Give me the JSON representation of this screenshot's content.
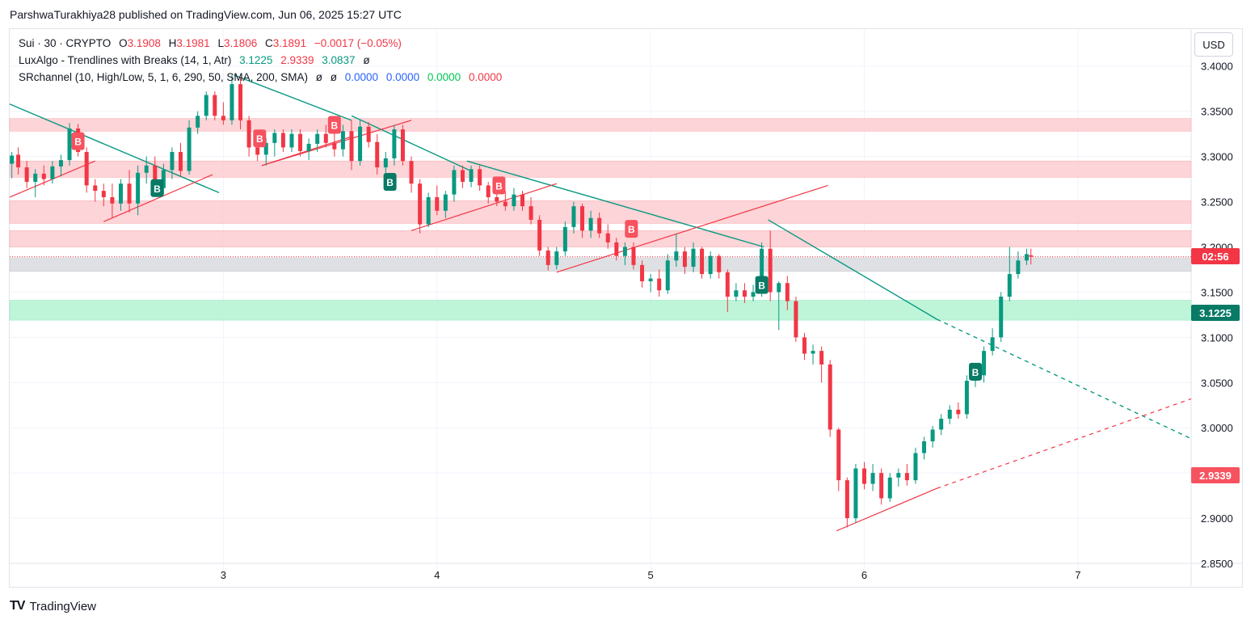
{
  "header": {
    "publisher": "ParshwaTurakhiya28 published on TradingView.com, Jun 06, 2025 15:27 UTC"
  },
  "legend": {
    "symbol": "Sui · 30 · CRYPTO",
    "open_label": "O",
    "open": "3.1908",
    "high_label": "H",
    "high": "3.1981",
    "low_label": "L",
    "low": "3.1806",
    "close_label": "C",
    "close": "3.1891",
    "change": "−0.0017 (−0.05%)",
    "indicator1_name": "LuxAlgo - Trendlines with Breaks (14, 1, Atr)",
    "indicator1_v1": "3.1225",
    "indicator1_v2": "2.9339",
    "indicator1_v3": "3.0837",
    "indicator1_v4": "ø",
    "indicator2_name": "SRchannel (10, High/Low, 5, 1, 6, 290, 50, SMA, 200, SMA)",
    "indicator2_v1": "ø",
    "indicator2_v2": "ø",
    "indicator2_v3": "0.0000",
    "indicator2_v4": "0.0000",
    "indicator2_v5": "0.0000",
    "indicator2_v6": "0.0000"
  },
  "currency_label": "USD",
  "price_tags": {
    "timer": "02:56",
    "upper_trendline": "3.1225",
    "lower_trendline": "2.9339"
  },
  "brand": {
    "logo": "TV",
    "name": "TradingView"
  },
  "colors": {
    "up": "#089981",
    "down": "#f23645",
    "resistance_zone": "#fdd0d3",
    "support_zone": "#b7f5d5",
    "current_zone": "#dcdde1",
    "trend_down": "#089981",
    "trend_up": "#f23645"
  },
  "chart_data": {
    "type": "candlestick",
    "symbol": "Sui · 30 · CRYPTO",
    "y_axis": {
      "ticks": [
        "3.4000",
        "3.3500",
        "3.3000",
        "3.2500",
        "3.2000",
        "3.1500",
        "3.1000",
        "3.0500",
        "3.0000",
        "2.9500",
        "2.9000",
        "2.8500"
      ],
      "range": [
        2.825,
        3.44
      ]
    },
    "x_axis": {
      "ticks": [
        {
          "label": "3",
          "x": 3.0
        },
        {
          "label": "4",
          "x": 4.0
        },
        {
          "label": "5",
          "x": 5.0
        },
        {
          "label": "6",
          "x": 6.0
        },
        {
          "label": "7",
          "x": 7.0
        }
      ],
      "range": [
        2.0,
        7.53
      ]
    },
    "zones": [
      {
        "kind": "resistance",
        "from": 3.328,
        "to": 3.342
      },
      {
        "kind": "resistance",
        "from": 3.277,
        "to": 3.295
      },
      {
        "kind": "resistance",
        "from": 3.226,
        "to": 3.251
      },
      {
        "kind": "resistance",
        "from": 3.2,
        "to": 3.218
      },
      {
        "kind": "current",
        "from": 3.173,
        "to": 3.188
      },
      {
        "kind": "support",
        "from": 3.119,
        "to": 3.141
      }
    ],
    "current_price": 3.1891,
    "trendlines_down": [
      {
        "x1": 2.0,
        "y1": 3.358,
        "x2": 2.98,
        "y2": 3.26
      },
      {
        "x1": 3.05,
        "y1": 3.39,
        "x2": 3.6,
        "y2": 3.34
      },
      {
        "x1": 3.6,
        "y1": 3.345,
        "x2": 4.15,
        "y2": 3.285
      },
      {
        "x1": 4.14,
        "y1": 3.295,
        "x2": 5.53,
        "y2": 3.2
      },
      {
        "x1": 5.55,
        "y1": 3.23,
        "x2": 6.34,
        "y2": 3.12
      },
      {
        "x1": 6.34,
        "y1": 3.12,
        "x2": 7.53,
        "y2": 2.988,
        "dashed": true
      }
    ],
    "trendlines_up": [
      {
        "x1": 2.0,
        "y1": 3.255,
        "x2": 2.4,
        "y2": 3.295
      },
      {
        "x1": 2.44,
        "y1": 3.228,
        "x2": 2.95,
        "y2": 3.28
      },
      {
        "x1": 3.18,
        "y1": 3.29,
        "x2": 3.6,
        "y2": 3.322
      },
      {
        "x1": 3.18,
        "y1": 3.29,
        "x2": 3.88,
        "y2": 3.34
      },
      {
        "x1": 3.88,
        "y1": 3.218,
        "x2": 4.56,
        "y2": 3.27
      },
      {
        "x1": 4.56,
        "y1": 3.172,
        "x2": 5.83,
        "y2": 3.268
      },
      {
        "x1": 5.87,
        "y1": 2.886,
        "x2": 6.34,
        "y2": 2.933
      },
      {
        "x1": 6.34,
        "y1": 2.933,
        "x2": 7.53,
        "y2": 3.032,
        "dashed": true
      }
    ],
    "break_markers": [
      {
        "x": 2.32,
        "y": 3.317,
        "type": "bearish",
        "label": "B"
      },
      {
        "x": 3.17,
        "y": 3.32,
        "type": "bearish",
        "label": "B"
      },
      {
        "x": 3.52,
        "y": 3.335,
        "type": "bearish",
        "label": "B"
      },
      {
        "x": 4.29,
        "y": 3.268,
        "type": "bearish",
        "label": "B"
      },
      {
        "x": 4.91,
        "y": 3.22,
        "type": "bearish",
        "label": "B"
      },
      {
        "x": 2.69,
        "y": 3.265,
        "type": "bullish",
        "label": "B"
      },
      {
        "x": 3.78,
        "y": 3.272,
        "type": "bullish",
        "label": "B"
      },
      {
        "x": 5.52,
        "y": 3.158,
        "type": "bullish",
        "label": "B"
      },
      {
        "x": 6.52,
        "y": 3.062,
        "type": "bullish",
        "label": "B"
      }
    ],
    "candles": [
      {
        "x": 2.01,
        "o": 3.292,
        "h": 3.305,
        "l": 3.276,
        "c": 3.301
      },
      {
        "x": 2.04,
        "o": 3.302,
        "h": 3.31,
        "l": 3.28,
        "c": 3.288
      },
      {
        "x": 2.08,
        "o": 3.288,
        "h": 3.295,
        "l": 3.265,
        "c": 3.272
      },
      {
        "x": 2.12,
        "o": 3.272,
        "h": 3.286,
        "l": 3.255,
        "c": 3.281
      },
      {
        "x": 2.16,
        "o": 3.281,
        "h": 3.29,
        "l": 3.268,
        "c": 3.275
      },
      {
        "x": 2.2,
        "o": 3.275,
        "h": 3.295,
        "l": 3.27,
        "c": 3.289
      },
      {
        "x": 2.24,
        "o": 3.289,
        "h": 3.302,
        "l": 3.278,
        "c": 3.296
      },
      {
        "x": 2.28,
        "o": 3.296,
        "h": 3.337,
        "l": 3.29,
        "c": 3.331
      },
      {
        "x": 2.32,
        "o": 3.331,
        "h": 3.336,
        "l": 3.3,
        "c": 3.305
      },
      {
        "x": 2.36,
        "o": 3.305,
        "h": 3.31,
        "l": 3.26,
        "c": 3.268
      },
      {
        "x": 2.4,
        "o": 3.268,
        "h": 3.275,
        "l": 3.25,
        "c": 3.262
      },
      {
        "x": 2.44,
        "o": 3.262,
        "h": 3.27,
        "l": 3.245,
        "c": 3.255
      },
      {
        "x": 2.48,
        "o": 3.255,
        "h": 3.27,
        "l": 3.232,
        "c": 3.248
      },
      {
        "x": 2.52,
        "o": 3.248,
        "h": 3.275,
        "l": 3.24,
        "c": 3.27
      },
      {
        "x": 2.56,
        "o": 3.27,
        "h": 3.285,
        "l": 3.238,
        "c": 3.248
      },
      {
        "x": 2.6,
        "o": 3.248,
        "h": 3.29,
        "l": 3.235,
        "c": 3.282
      },
      {
        "x": 2.64,
        "o": 3.282,
        "h": 3.3,
        "l": 3.27,
        "c": 3.29
      },
      {
        "x": 2.68,
        "o": 3.29,
        "h": 3.3,
        "l": 3.258,
        "c": 3.265
      },
      {
        "x": 2.72,
        "o": 3.265,
        "h": 3.292,
        "l": 3.258,
        "c": 3.285
      },
      {
        "x": 2.76,
        "o": 3.285,
        "h": 3.31,
        "l": 3.275,
        "c": 3.305
      },
      {
        "x": 2.8,
        "o": 3.305,
        "h": 3.315,
        "l": 3.278,
        "c": 3.284
      },
      {
        "x": 2.84,
        "o": 3.284,
        "h": 3.34,
        "l": 3.28,
        "c": 3.332
      },
      {
        "x": 2.88,
        "o": 3.332,
        "h": 3.35,
        "l": 3.325,
        "c": 3.345
      },
      {
        "x": 2.92,
        "o": 3.345,
        "h": 3.372,
        "l": 3.34,
        "c": 3.368
      },
      {
        "x": 2.96,
        "o": 3.368,
        "h": 3.372,
        "l": 3.34,
        "c": 3.345
      },
      {
        "x": 3.0,
        "o": 3.345,
        "h": 3.36,
        "l": 3.335,
        "c": 3.34
      },
      {
        "x": 3.04,
        "o": 3.34,
        "h": 3.39,
        "l": 3.335,
        "c": 3.38
      },
      {
        "x": 3.08,
        "o": 3.38,
        "h": 3.388,
        "l": 3.33,
        "c": 3.34
      },
      {
        "x": 3.12,
        "o": 3.34,
        "h": 3.345,
        "l": 3.3,
        "c": 3.31
      },
      {
        "x": 3.16,
        "o": 3.31,
        "h": 3.325,
        "l": 3.295,
        "c": 3.302
      },
      {
        "x": 3.2,
        "o": 3.302,
        "h": 3.32,
        "l": 3.29,
        "c": 3.315
      },
      {
        "x": 3.24,
        "o": 3.315,
        "h": 3.33,
        "l": 3.3,
        "c": 3.326
      },
      {
        "x": 3.28,
        "o": 3.326,
        "h": 3.33,
        "l": 3.305,
        "c": 3.31
      },
      {
        "x": 3.32,
        "o": 3.31,
        "h": 3.33,
        "l": 3.305,
        "c": 3.325
      },
      {
        "x": 3.36,
        "o": 3.325,
        "h": 3.33,
        "l": 3.3,
        "c": 3.306
      },
      {
        "x": 3.4,
        "o": 3.306,
        "h": 3.32,
        "l": 3.296,
        "c": 3.314
      },
      {
        "x": 3.44,
        "o": 3.314,
        "h": 3.33,
        "l": 3.305,
        "c": 3.325
      },
      {
        "x": 3.48,
        "o": 3.325,
        "h": 3.335,
        "l": 3.31,
        "c": 3.315
      },
      {
        "x": 3.52,
        "o": 3.315,
        "h": 3.33,
        "l": 3.3,
        "c": 3.308
      },
      {
        "x": 3.56,
        "o": 3.308,
        "h": 3.335,
        "l": 3.3,
        "c": 3.328
      },
      {
        "x": 3.6,
        "o": 3.328,
        "h": 3.34,
        "l": 3.285,
        "c": 3.295
      },
      {
        "x": 3.64,
        "o": 3.295,
        "h": 3.34,
        "l": 3.29,
        "c": 3.333
      },
      {
        "x": 3.68,
        "o": 3.333,
        "h": 3.338,
        "l": 3.31,
        "c": 3.316
      },
      {
        "x": 3.72,
        "o": 3.316,
        "h": 3.325,
        "l": 3.28,
        "c": 3.288
      },
      {
        "x": 3.76,
        "o": 3.288,
        "h": 3.305,
        "l": 3.275,
        "c": 3.298
      },
      {
        "x": 3.8,
        "o": 3.298,
        "h": 3.335,
        "l": 3.29,
        "c": 3.33
      },
      {
        "x": 3.84,
        "o": 3.33,
        "h": 3.335,
        "l": 3.29,
        "c": 3.295
      },
      {
        "x": 3.88,
        "o": 3.295,
        "h": 3.3,
        "l": 3.26,
        "c": 3.27
      },
      {
        "x": 3.92,
        "o": 3.27,
        "h": 3.275,
        "l": 3.215,
        "c": 3.225
      },
      {
        "x": 3.96,
        "o": 3.225,
        "h": 3.26,
        "l": 3.222,
        "c": 3.255
      },
      {
        "x": 4.0,
        "o": 3.255,
        "h": 3.268,
        "l": 3.235,
        "c": 3.24
      },
      {
        "x": 4.04,
        "o": 3.24,
        "h": 3.262,
        "l": 3.232,
        "c": 3.258
      },
      {
        "x": 4.08,
        "o": 3.258,
        "h": 3.29,
        "l": 3.25,
        "c": 3.285
      },
      {
        "x": 4.12,
        "o": 3.285,
        "h": 3.29,
        "l": 3.265,
        "c": 3.272
      },
      {
        "x": 4.16,
        "o": 3.272,
        "h": 3.29,
        "l": 3.266,
        "c": 3.286
      },
      {
        "x": 4.2,
        "o": 3.286,
        "h": 3.29,
        "l": 3.262,
        "c": 3.268
      },
      {
        "x": 4.24,
        "o": 3.268,
        "h": 3.272,
        "l": 3.248,
        "c": 3.255
      },
      {
        "x": 4.28,
        "o": 3.255,
        "h": 3.26,
        "l": 3.245,
        "c": 3.25
      },
      {
        "x": 4.32,
        "o": 3.25,
        "h": 3.262,
        "l": 3.24,
        "c": 3.245
      },
      {
        "x": 4.36,
        "o": 3.245,
        "h": 3.265,
        "l": 3.24,
        "c": 3.258
      },
      {
        "x": 4.4,
        "o": 3.258,
        "h": 3.262,
        "l": 3.24,
        "c": 3.245
      },
      {
        "x": 4.44,
        "o": 3.245,
        "h": 3.255,
        "l": 3.225,
        "c": 3.23
      },
      {
        "x": 4.48,
        "o": 3.23,
        "h": 3.235,
        "l": 3.19,
        "c": 3.196
      },
      {
        "x": 4.52,
        "o": 3.196,
        "h": 3.2,
        "l": 3.174,
        "c": 3.18
      },
      {
        "x": 4.56,
        "o": 3.18,
        "h": 3.2,
        "l": 3.175,
        "c": 3.195
      },
      {
        "x": 4.6,
        "o": 3.195,
        "h": 3.228,
        "l": 3.19,
        "c": 3.222
      },
      {
        "x": 4.64,
        "o": 3.222,
        "h": 3.25,
        "l": 3.215,
        "c": 3.245
      },
      {
        "x": 4.68,
        "o": 3.245,
        "h": 3.248,
        "l": 3.21,
        "c": 3.218
      },
      {
        "x": 4.72,
        "o": 3.218,
        "h": 3.24,
        "l": 3.21,
        "c": 3.232
      },
      {
        "x": 4.76,
        "o": 3.232,
        "h": 3.238,
        "l": 3.21,
        "c": 3.215
      },
      {
        "x": 4.8,
        "o": 3.215,
        "h": 3.225,
        "l": 3.198,
        "c": 3.205
      },
      {
        "x": 4.84,
        "o": 3.205,
        "h": 3.21,
        "l": 3.185,
        "c": 3.19
      },
      {
        "x": 4.88,
        "o": 3.19,
        "h": 3.205,
        "l": 3.18,
        "c": 3.2
      },
      {
        "x": 4.92,
        "o": 3.2,
        "h": 3.205,
        "l": 3.175,
        "c": 3.18
      },
      {
        "x": 4.96,
        "o": 3.18,
        "h": 3.185,
        "l": 3.155,
        "c": 3.162
      },
      {
        "x": 5.0,
        "o": 3.162,
        "h": 3.17,
        "l": 3.15,
        "c": 3.165
      },
      {
        "x": 5.04,
        "o": 3.165,
        "h": 3.175,
        "l": 3.145,
        "c": 3.152
      },
      {
        "x": 5.08,
        "o": 3.152,
        "h": 3.192,
        "l": 3.148,
        "c": 3.185
      },
      {
        "x": 5.12,
        "o": 3.185,
        "h": 3.215,
        "l": 3.178,
        "c": 3.195
      },
      {
        "x": 5.16,
        "o": 3.195,
        "h": 3.2,
        "l": 3.17,
        "c": 3.178
      },
      {
        "x": 5.2,
        "o": 3.178,
        "h": 3.205,
        "l": 3.172,
        "c": 3.198
      },
      {
        "x": 5.24,
        "o": 3.198,
        "h": 3.2,
        "l": 3.165,
        "c": 3.17
      },
      {
        "x": 5.28,
        "o": 3.17,
        "h": 3.195,
        "l": 3.165,
        "c": 3.19
      },
      {
        "x": 5.32,
        "o": 3.19,
        "h": 3.192,
        "l": 3.165,
        "c": 3.172
      },
      {
        "x": 5.36,
        "o": 3.172,
        "h": 3.175,
        "l": 3.128,
        "c": 3.145
      },
      {
        "x": 5.4,
        "o": 3.145,
        "h": 3.16,
        "l": 3.14,
        "c": 3.152
      },
      {
        "x": 5.44,
        "o": 3.152,
        "h": 3.16,
        "l": 3.138,
        "c": 3.145
      },
      {
        "x": 5.48,
        "o": 3.145,
        "h": 3.158,
        "l": 3.14,
        "c": 3.15
      },
      {
        "x": 5.52,
        "o": 3.15,
        "h": 3.205,
        "l": 3.145,
        "c": 3.198
      },
      {
        "x": 5.56,
        "o": 3.198,
        "h": 3.218,
        "l": 3.14,
        "c": 3.15
      },
      {
        "x": 5.6,
        "o": 3.15,
        "h": 3.162,
        "l": 3.108,
        "c": 3.16
      },
      {
        "x": 5.64,
        "o": 3.16,
        "h": 3.168,
        "l": 3.13,
        "c": 3.14
      },
      {
        "x": 5.68,
        "o": 3.14,
        "h": 3.145,
        "l": 3.095,
        "c": 3.1
      },
      {
        "x": 5.72,
        "o": 3.1,
        "h": 3.105,
        "l": 3.075,
        "c": 3.082
      },
      {
        "x": 5.76,
        "o": 3.082,
        "h": 3.092,
        "l": 3.07,
        "c": 3.085
      },
      {
        "x": 5.8,
        "o": 3.085,
        "h": 3.09,
        "l": 3.05,
        "c": 3.07
      },
      {
        "x": 5.84,
        "o": 3.07,
        "h": 3.075,
        "l": 2.99,
        "c": 2.998
      },
      {
        "x": 5.88,
        "o": 2.998,
        "h": 3.0,
        "l": 2.93,
        "c": 2.942
      },
      {
        "x": 5.92,
        "o": 2.942,
        "h": 2.945,
        "l": 2.89,
        "c": 2.9
      },
      {
        "x": 5.96,
        "o": 2.9,
        "h": 2.96,
        "l": 2.895,
        "c": 2.955
      },
      {
        "x": 6.0,
        "o": 2.955,
        "h": 2.962,
        "l": 2.932,
        "c": 2.938
      },
      {
        "x": 6.04,
        "o": 2.938,
        "h": 2.96,
        "l": 2.93,
        "c": 2.95
      },
      {
        "x": 6.08,
        "o": 2.95,
        "h": 2.955,
        "l": 2.915,
        "c": 2.922
      },
      {
        "x": 6.12,
        "o": 2.922,
        "h": 2.95,
        "l": 2.918,
        "c": 2.945
      },
      {
        "x": 6.16,
        "o": 2.945,
        "h": 2.955,
        "l": 2.935,
        "c": 2.95
      },
      {
        "x": 6.2,
        "o": 2.95,
        "h": 2.96,
        "l": 2.936,
        "c": 2.942
      },
      {
        "x": 6.24,
        "o": 2.942,
        "h": 2.978,
        "l": 2.938,
        "c": 2.972
      },
      {
        "x": 6.28,
        "o": 2.972,
        "h": 2.99,
        "l": 2.965,
        "c": 2.985
      },
      {
        "x": 6.32,
        "o": 2.985,
        "h": 3.002,
        "l": 2.978,
        "c": 2.998
      },
      {
        "x": 6.36,
        "o": 2.998,
        "h": 3.015,
        "l": 2.992,
        "c": 3.01
      },
      {
        "x": 6.4,
        "o": 3.01,
        "h": 3.025,
        "l": 3.004,
        "c": 3.02
      },
      {
        "x": 6.44,
        "o": 3.02,
        "h": 3.028,
        "l": 3.01,
        "c": 3.015
      },
      {
        "x": 6.48,
        "o": 3.015,
        "h": 3.058,
        "l": 3.01,
        "c": 3.052
      },
      {
        "x": 6.52,
        "o": 3.052,
        "h": 3.062,
        "l": 3.045,
        "c": 3.058
      },
      {
        "x": 6.56,
        "o": 3.058,
        "h": 3.09,
        "l": 3.05,
        "c": 3.085
      },
      {
        "x": 6.6,
        "o": 3.085,
        "h": 3.11,
        "l": 3.08,
        "c": 3.1
      },
      {
        "x": 6.64,
        "o": 3.1,
        "h": 3.15,
        "l": 3.095,
        "c": 3.145
      },
      {
        "x": 6.68,
        "o": 3.145,
        "h": 3.2,
        "l": 3.14,
        "c": 3.17
      },
      {
        "x": 6.72,
        "o": 3.17,
        "h": 3.195,
        "l": 3.165,
        "c": 3.185
      },
      {
        "x": 6.76,
        "o": 3.185,
        "h": 3.198,
        "l": 3.18,
        "c": 3.192
      },
      {
        "x": 6.78,
        "o": 3.1908,
        "h": 3.1981,
        "l": 3.1806,
        "c": 3.1891
      }
    ]
  }
}
